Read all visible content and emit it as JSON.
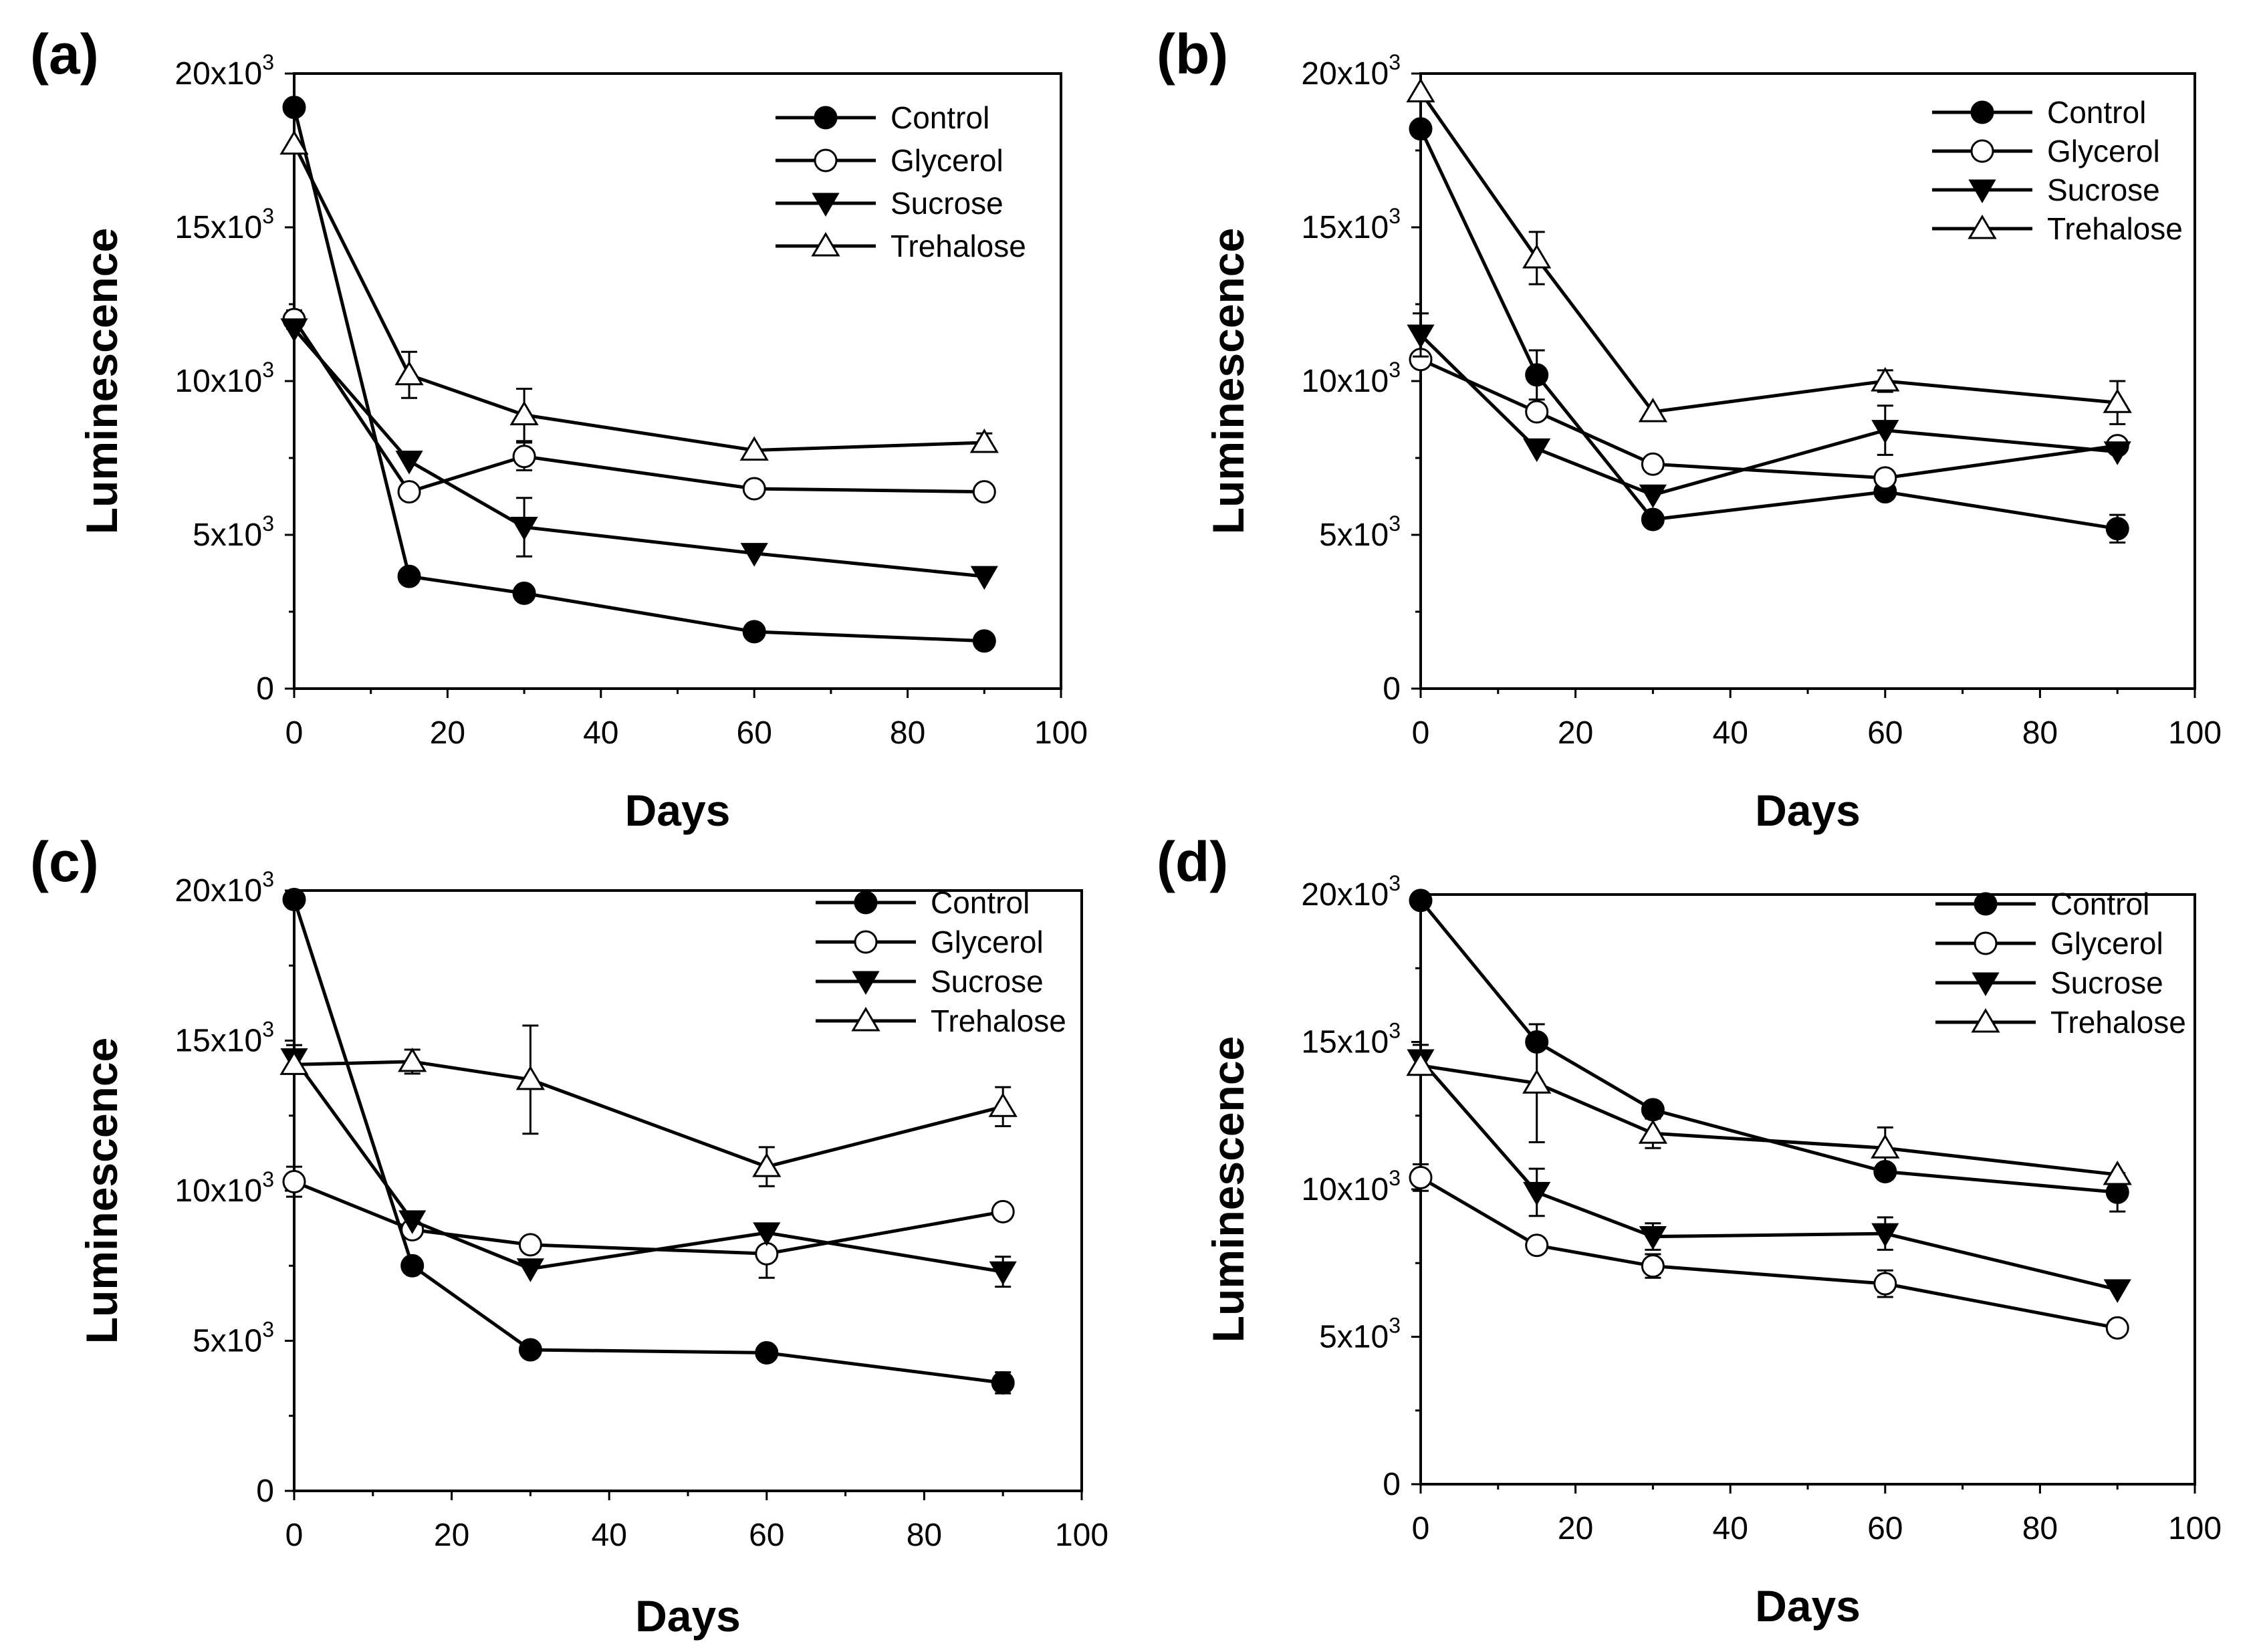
{
  "chart_data": [
    {
      "type": "line",
      "panel": "(a)",
      "xlabel": "Days",
      "ylabel": "Luminescence",
      "xlim": [
        0,
        100
      ],
      "ylim": [
        0,
        20000
      ],
      "xticks": [
        "0",
        "20",
        "40",
        "60",
        "80",
        "100"
      ],
      "yticks": [
        {
          "base": "0",
          "exp": ""
        },
        {
          "base": "5x10",
          "exp": "3"
        },
        {
          "base": "10x10",
          "exp": "3"
        },
        {
          "base": "15x10",
          "exp": "3"
        },
        {
          "base": "20x10",
          "exp": "3"
        }
      ],
      "legend_position": "top-right",
      "x": [
        0,
        15,
        30,
        60,
        90
      ],
      "series": [
        {
          "name": "Control",
          "marker": "filled-circle",
          "values": [
            18900,
            3650,
            3100,
            1850,
            1550
          ],
          "errors": [
            0,
            0,
            0,
            0,
            0
          ]
        },
        {
          "name": "Glycerol",
          "marker": "open-circle",
          "values": [
            12000,
            6400,
            7550,
            6500,
            6400
          ],
          "errors": [
            300,
            0,
            450,
            0,
            0
          ]
        },
        {
          "name": "Sucrose",
          "marker": "filled-triangle-down",
          "values": [
            11700,
            7400,
            5250,
            4400,
            3650
          ],
          "errors": [
            0,
            0,
            950,
            0,
            0
          ]
        },
        {
          "name": "Trehalose",
          "marker": "open-triangle-up",
          "values": [
            17700,
            10200,
            8900,
            7750,
            8000
          ],
          "errors": [
            0,
            750,
            850,
            0,
            300
          ]
        }
      ]
    },
    {
      "type": "line",
      "panel": "(b)",
      "xlabel": "Days",
      "ylabel": "Luminescence",
      "xlim": [
        0,
        100
      ],
      "ylim": [
        0,
        20000
      ],
      "xticks": [
        "0",
        "20",
        "40",
        "60",
        "80",
        "100"
      ],
      "yticks": [
        {
          "base": "0",
          "exp": ""
        },
        {
          "base": "5x10",
          "exp": "3"
        },
        {
          "base": "10x10",
          "exp": "3"
        },
        {
          "base": "15x10",
          "exp": "3"
        },
        {
          "base": "20x10",
          "exp": "3"
        }
      ],
      "legend_position": "top-right",
      "x": [
        0,
        15,
        30,
        60,
        90
      ],
      "series": [
        {
          "name": "Control",
          "marker": "filled-circle",
          "values": [
            18200,
            10200,
            5500,
            6400,
            5200
          ],
          "errors": [
            0,
            800,
            0,
            0,
            450
          ]
        },
        {
          "name": "Glycerol",
          "marker": "open-circle",
          "values": [
            10700,
            9000,
            7300,
            6850,
            7900
          ],
          "errors": [
            0,
            0,
            0,
            0,
            0
          ]
        },
        {
          "name": "Sucrose",
          "marker": "filled-triangle-down",
          "values": [
            11500,
            7800,
            6300,
            8400,
            7700
          ],
          "errors": [
            700,
            0,
            0,
            800,
            0
          ]
        },
        {
          "name": "Trehalose",
          "marker": "open-triangle-up",
          "values": [
            19400,
            14000,
            9000,
            10000,
            9300
          ],
          "errors": [
            0,
            850,
            0,
            350,
            700
          ]
        }
      ]
    },
    {
      "type": "line",
      "panel": "(c)",
      "xlabel": "Days",
      "ylabel": "Luminescence",
      "xlim": [
        0,
        100
      ],
      "ylim": [
        0,
        20000
      ],
      "xticks": [
        "0",
        "20",
        "40",
        "60",
        "80",
        "100"
      ],
      "yticks": [
        {
          "base": "0",
          "exp": ""
        },
        {
          "base": "5x10",
          "exp": "3"
        },
        {
          "base": "10x10",
          "exp": "3"
        },
        {
          "base": "15x10",
          "exp": "3"
        },
        {
          "base": "20x10",
          "exp": "3"
        }
      ],
      "legend_position": "top-right",
      "x": [
        0,
        15,
        30,
        60,
        90
      ],
      "series": [
        {
          "name": "Control",
          "marker": "filled-circle",
          "values": [
            19700,
            7500,
            4700,
            4600,
            3600
          ],
          "errors": [
            0,
            0,
            0,
            0,
            350
          ]
        },
        {
          "name": "Glycerol",
          "marker": "open-circle",
          "values": [
            10300,
            8700,
            8200,
            7900,
            9300
          ],
          "errors": [
            500,
            0,
            0,
            800,
            0
          ]
        },
        {
          "name": "Sucrose",
          "marker": "filled-triangle-down",
          "values": [
            14400,
            9000,
            7400,
            8600,
            7300
          ],
          "errors": [
            450,
            0,
            0,
            0,
            500
          ]
        },
        {
          "name": "Trehalose",
          "marker": "open-triangle-up",
          "values": [
            14200,
            14300,
            13700,
            10800,
            12800
          ],
          "errors": [
            0,
            400,
            1800,
            650,
            650
          ]
        }
      ]
    },
    {
      "type": "line",
      "panel": "(d)",
      "xlabel": "Days",
      "ylabel": "Luminescence",
      "xlim": [
        0,
        100
      ],
      "ylim": [
        0,
        20000
      ],
      "xticks": [
        "0",
        "20",
        "40",
        "60",
        "80",
        "100"
      ],
      "yticks": [
        {
          "base": "0",
          "exp": ""
        },
        {
          "base": "5x10",
          "exp": "3"
        },
        {
          "base": "10x10",
          "exp": "3"
        },
        {
          "base": "15x10",
          "exp": "3"
        },
        {
          "base": "20x10",
          "exp": "3"
        }
      ],
      "legend_position": "top-right",
      "x": [
        0,
        15,
        30,
        60,
        90
      ],
      "series": [
        {
          "name": "Control",
          "marker": "filled-circle",
          "values": [
            19800,
            15000,
            12700,
            10600,
            9900
          ],
          "errors": [
            0,
            0,
            0,
            0,
            650
          ]
        },
        {
          "name": "Glycerol",
          "marker": "open-circle",
          "values": [
            10400,
            8100,
            7400,
            6800,
            5300
          ],
          "errors": [
            450,
            0,
            400,
            450,
            0
          ]
        },
        {
          "name": "Sucrose",
          "marker": "filled-triangle-down",
          "values": [
            14400,
            9900,
            8400,
            8500,
            6600
          ],
          "errors": [
            500,
            800,
            450,
            550,
            0
          ]
        },
        {
          "name": "Trehalose",
          "marker": "open-triangle-up",
          "values": [
            14200,
            13600,
            11900,
            11400,
            10500
          ],
          "errors": [
            0,
            2000,
            500,
            700,
            0
          ]
        }
      ]
    }
  ]
}
